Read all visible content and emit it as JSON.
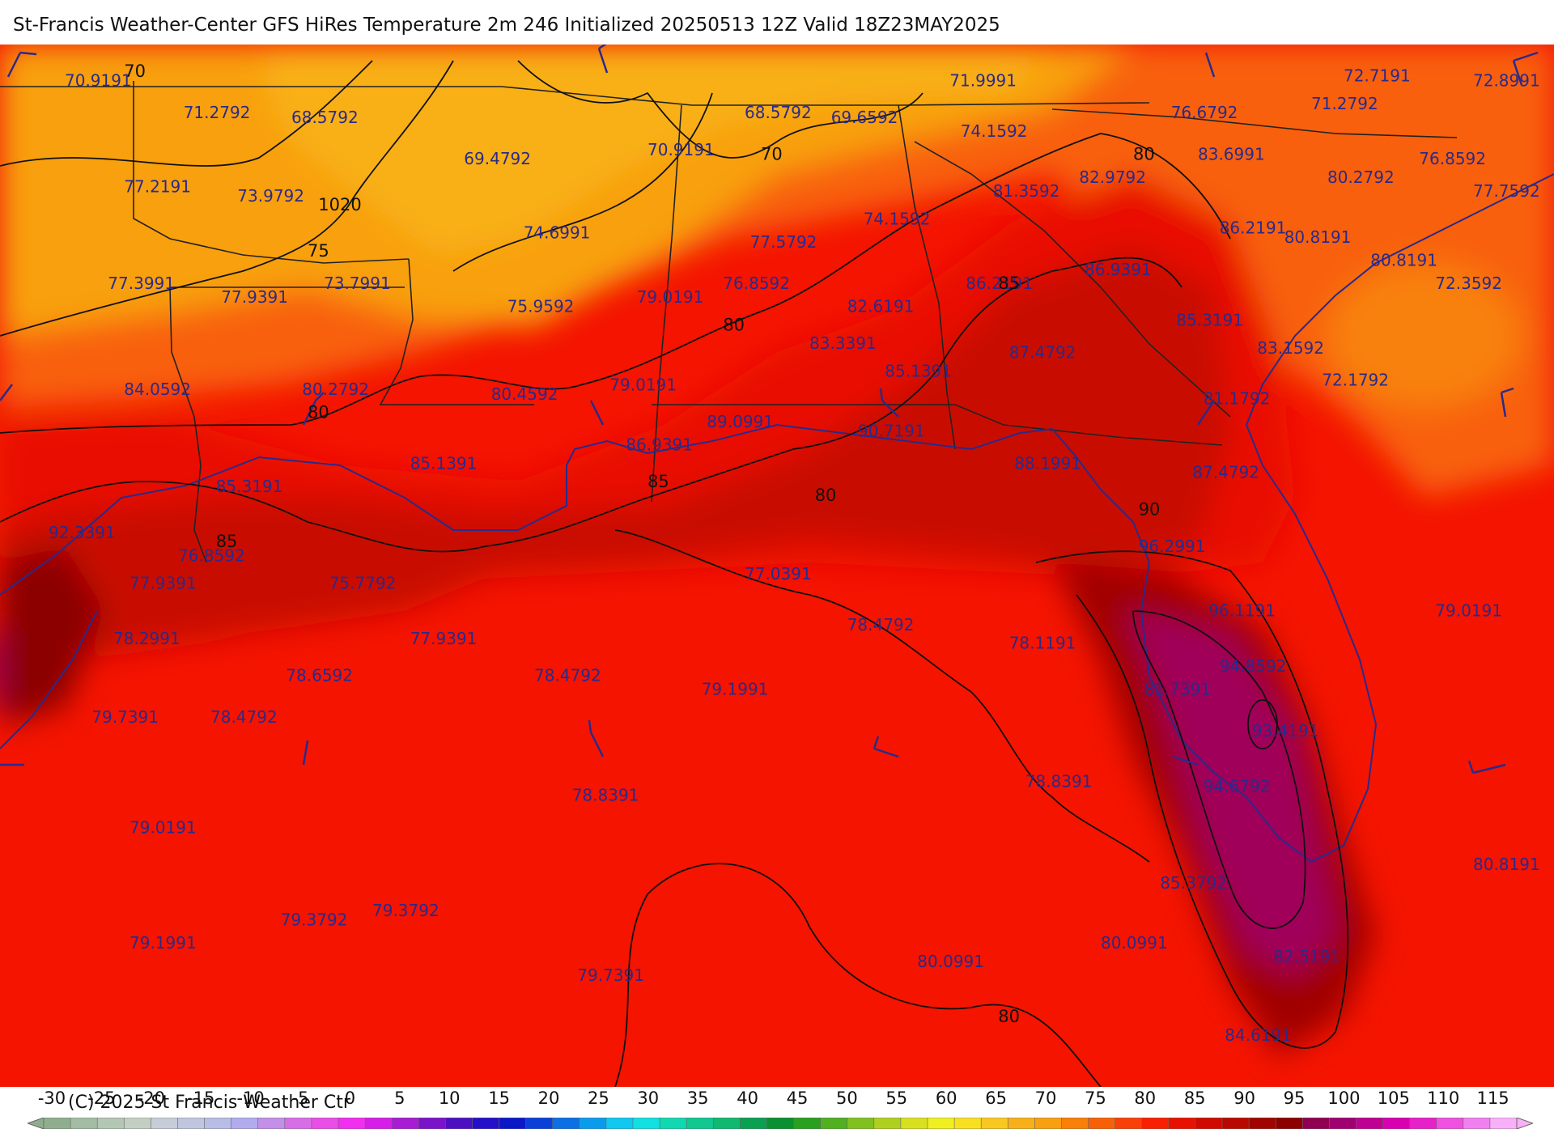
{
  "title": "St-Francis Weather-Center GFS HiRes Temperature 2m  246 Initialized 20250513 12Z Valid 18Z23MAY2025",
  "copyright": "(C) 2025 St Francis Weather Ctr",
  "colorbar": {
    "ticks": [
      "-30",
      "-25",
      "-20",
      "-15",
      "-10",
      "-5",
      "0",
      "5",
      "10",
      "15",
      "20",
      "25",
      "30",
      "35",
      "40",
      "45",
      "50",
      "55",
      "60",
      "65",
      "70",
      "75",
      "80",
      "85",
      "90",
      "95",
      "100",
      "105",
      "110",
      "115"
    ],
    "colors": [
      "#8fae8f",
      "#a3bca3",
      "#b4c6b4",
      "#c2cfc2",
      "#c6ccd8",
      "#bfc6de",
      "#b7bde4",
      "#b0acee",
      "#c38fe8",
      "#d66fe6",
      "#e94ee6",
      "#f22ef0",
      "#d61ee8",
      "#a81cd4",
      "#7a14c8",
      "#4d10c0",
      "#2410c8",
      "#0a18c8",
      "#0a40d8",
      "#0a70e4",
      "#0a9cec",
      "#10c8f0",
      "#10e0e0",
      "#10d8b0",
      "#10c890",
      "#10b870",
      "#0aa050",
      "#0a9030",
      "#2aa020",
      "#50b020",
      "#80c020",
      "#b0d020",
      "#d8e020",
      "#f0f020",
      "#f8e020",
      "#f8c820",
      "#f8b018",
      "#f8a010",
      "#f88008",
      "#f86008",
      "#f84008",
      "#f82000",
      "#e81000",
      "#d00a00",
      "#b80800",
      "#a00400",
      "#8c0000",
      "#900050",
      "#a00070",
      "#c00090",
      "#d800b0",
      "#e820c8",
      "#f050e0",
      "#f080f0",
      "#f8b0f8"
    ]
  },
  "map": {
    "temperature_labels": [
      {
        "text": "70.9191",
        "lon": -100.8,
        "lat": 36.6
      },
      {
        "text": "71.2792",
        "lon": -98.6,
        "lat": 35.9
      },
      {
        "text": "68.5792",
        "lon": -96.6,
        "lat": 35.8
      },
      {
        "text": "69.4792",
        "lon": -93.4,
        "lat": 34.9
      },
      {
        "text": "70.9191",
        "lon": -90.0,
        "lat": 35.1
      },
      {
        "text": "68.5792",
        "lon": -88.2,
        "lat": 35.9
      },
      {
        "text": "69.6592",
        "lon": -86.6,
        "lat": 35.8
      },
      {
        "text": "71.9991",
        "lon": -84.4,
        "lat": 36.6
      },
      {
        "text": "72.7191",
        "lon": -77.1,
        "lat": 36.7
      },
      {
        "text": "72.8991",
        "lon": -74.7,
        "lat": 36.6
      },
      {
        "text": "71.2792",
        "lon": -77.7,
        "lat": 36.1
      },
      {
        "text": "76.6792",
        "lon": -80.3,
        "lat": 35.9
      },
      {
        "text": "74.1592",
        "lon": -84.2,
        "lat": 35.5
      },
      {
        "text": "83.6991",
        "lon": -79.8,
        "lat": 35.0
      },
      {
        "text": "76.8592",
        "lon": -75.7,
        "lat": 34.9
      },
      {
        "text": "82.9792",
        "lon": -82.0,
        "lat": 34.5
      },
      {
        "text": "80.2792",
        "lon": -77.4,
        "lat": 34.5
      },
      {
        "text": "77.2191",
        "lon": -99.7,
        "lat": 34.3
      },
      {
        "text": "73.9792",
        "lon": -97.6,
        "lat": 34.1
      },
      {
        "text": "81.3592",
        "lon": -83.6,
        "lat": 34.2
      },
      {
        "text": "77.7592",
        "lon": -74.7,
        "lat": 34.2
      },
      {
        "text": "74.6991",
        "lon": -92.3,
        "lat": 33.3
      },
      {
        "text": "74.1592",
        "lon": -86.0,
        "lat": 33.6
      },
      {
        "text": "86.2191",
        "lon": -79.4,
        "lat": 33.4
      },
      {
        "text": "80.8191",
        "lon": -78.2,
        "lat": 33.2
      },
      {
        "text": "77.5792",
        "lon": -88.1,
        "lat": 33.1
      },
      {
        "text": "86.9391",
        "lon": -81.9,
        "lat": 32.5
      },
      {
        "text": "80.8191",
        "lon": -76.6,
        "lat": 32.7
      },
      {
        "text": "77.3991",
        "lon": -100.0,
        "lat": 32.2
      },
      {
        "text": "77.9391",
        "lon": -97.9,
        "lat": 31.9
      },
      {
        "text": "73.7991",
        "lon": -96.0,
        "lat": 32.2
      },
      {
        "text": "75.9592",
        "lon": -92.6,
        "lat": 31.7
      },
      {
        "text": "79.0191",
        "lon": -90.2,
        "lat": 31.9
      },
      {
        "text": "76.8592",
        "lon": -88.6,
        "lat": 32.2
      },
      {
        "text": "82.6191",
        "lon": -86.3,
        "lat": 31.7
      },
      {
        "text": "86.2191",
        "lon": -84.1,
        "lat": 32.2
      },
      {
        "text": "85.3191",
        "lon": -80.2,
        "lat": 31.4
      },
      {
        "text": "72.3592",
        "lon": -75.4,
        "lat": 32.2
      },
      {
        "text": "83.3391",
        "lon": -87.0,
        "lat": 30.9
      },
      {
        "text": "87.4792",
        "lon": -83.3,
        "lat": 30.7
      },
      {
        "text": "83.1592",
        "lon": -78.7,
        "lat": 30.8
      },
      {
        "text": "85.1391",
        "lon": -85.6,
        "lat": 30.3
      },
      {
        "text": "72.1792",
        "lon": -77.5,
        "lat": 30.1
      },
      {
        "text": "84.0592",
        "lon": -99.7,
        "lat": 29.9
      },
      {
        "text": "80.2792",
        "lon": -96.4,
        "lat": 29.9
      },
      {
        "text": "80.4592",
        "lon": -92.9,
        "lat": 29.8
      },
      {
        "text": "79.0191",
        "lon": -90.7,
        "lat": 30.0
      },
      {
        "text": "81.1792",
        "lon": -79.7,
        "lat": 29.7
      },
      {
        "text": "89.0991",
        "lon": -88.9,
        "lat": 29.2
      },
      {
        "text": "90.7191",
        "lon": -86.1,
        "lat": 29.0
      },
      {
        "text": "86.9391",
        "lon": -90.4,
        "lat": 28.7
      },
      {
        "text": "88.1991",
        "lon": -83.2,
        "lat": 28.3
      },
      {
        "text": "87.4792",
        "lon": -79.9,
        "lat": 28.1
      },
      {
        "text": "85.1391",
        "lon": -94.4,
        "lat": 28.3
      },
      {
        "text": "85.3191",
        "lon": -98.0,
        "lat": 27.8
      },
      {
        "text": "92.3391",
        "lon": -101.1,
        "lat": 26.8
      },
      {
        "text": "96.2991",
        "lon": -80.9,
        "lat": 26.5
      },
      {
        "text": "76.8592",
        "lon": -98.7,
        "lat": 26.3
      },
      {
        "text": "77.9391",
        "lon": -99.6,
        "lat": 25.7
      },
      {
        "text": "75.7792",
        "lon": -95.9,
        "lat": 25.7
      },
      {
        "text": "77.0391",
        "lon": -88.2,
        "lat": 25.9
      },
      {
        "text": "96.1191",
        "lon": -79.6,
        "lat": 25.1
      },
      {
        "text": "79.0191",
        "lon": -75.4,
        "lat": 25.1
      },
      {
        "text": "78.2991",
        "lon": -99.9,
        "lat": 24.5
      },
      {
        "text": "77.9391",
        "lon": -94.4,
        "lat": 24.5
      },
      {
        "text": "78.4792",
        "lon": -86.3,
        "lat": 24.8
      },
      {
        "text": "78.1191",
        "lon": -83.3,
        "lat": 24.4
      },
      {
        "text": "94.8592",
        "lon": -79.4,
        "lat": 23.9
      },
      {
        "text": "78.6592",
        "lon": -96.7,
        "lat": 23.7
      },
      {
        "text": "78.4792",
        "lon": -92.1,
        "lat": 23.7
      },
      {
        "text": "79.1991",
        "lon": -89.0,
        "lat": 23.4
      },
      {
        "text": "81.7391",
        "lon": -80.8,
        "lat": 23.4
      },
      {
        "text": "79.7391",
        "lon": -100.3,
        "lat": 22.8
      },
      {
        "text": "78.4792",
        "lon": -98.1,
        "lat": 22.8
      },
      {
        "text": "93.4191",
        "lon": -78.8,
        "lat": 22.5
      },
      {
        "text": "78.8391",
        "lon": -91.4,
        "lat": 21.1
      },
      {
        "text": "78.8391",
        "lon": -83.0,
        "lat": 21.4
      },
      {
        "text": "94.6792",
        "lon": -79.7,
        "lat": 21.3
      },
      {
        "text": "79.0191",
        "lon": -99.6,
        "lat": 20.4
      },
      {
        "text": "80.8191",
        "lon": -74.7,
        "lat": 19.6
      },
      {
        "text": "85.3792",
        "lon": -80.5,
        "lat": 19.2
      },
      {
        "text": "79.3792",
        "lon": -96.8,
        "lat": 18.4
      },
      {
        "text": "79.3792",
        "lon": -95.1,
        "lat": 18.6
      },
      {
        "text": "79.1991",
        "lon": -99.6,
        "lat": 17.9
      },
      {
        "text": "80.0991",
        "lon": -85.0,
        "lat": 17.5
      },
      {
        "text": "80.0991",
        "lon": -81.6,
        "lat": 17.9
      },
      {
        "text": "79.7391",
        "lon": -91.3,
        "lat": 17.2
      },
      {
        "text": "82.5191",
        "lon": -78.4,
        "lat": 17.6
      },
      {
        "text": "84.6191",
        "lon": -79.3,
        "lat": 15.9
      }
    ],
    "isotherm_labels": [
      {
        "text": "70",
        "lon": -99.7,
        "lat": 36.8
      },
      {
        "text": "70",
        "lon": -87.9,
        "lat": 35.0
      },
      {
        "text": "1020",
        "lon": -96.1,
        "lat": 33.9
      },
      {
        "text": "75",
        "lon": -96.3,
        "lat": 32.9
      },
      {
        "text": "80",
        "lon": -81.0,
        "lat": 35.0
      },
      {
        "text": "85",
        "lon": -83.5,
        "lat": 32.2
      },
      {
        "text": "80",
        "lon": -88.6,
        "lat": 31.3
      },
      {
        "text": "80",
        "lon": -96.3,
        "lat": 29.4
      },
      {
        "text": "85",
        "lon": -90.0,
        "lat": 27.9
      },
      {
        "text": "80",
        "lon": -86.9,
        "lat": 27.6
      },
      {
        "text": "90",
        "lon": -80.9,
        "lat": 27.3
      },
      {
        "text": "85",
        "lon": -98.0,
        "lat": 26.6
      },
      {
        "text": "80",
        "lon": -83.5,
        "lat": 16.3
      }
    ]
  }
}
